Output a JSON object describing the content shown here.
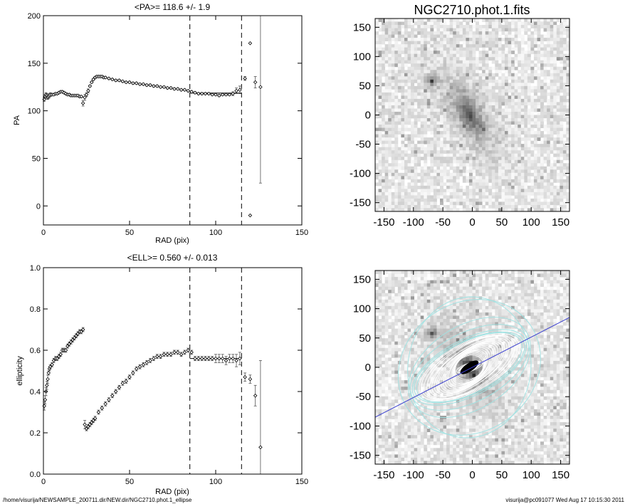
{
  "footer": {
    "path": "/home/visurija/NEWSAMPLE_200711.dir/NEW.dir/NGC2710.phot.1_ellipse",
    "stamp": "visurija@pc091077  Wed Aug 17 10:15:30 2011"
  },
  "chart_data": [
    {
      "type": "scatter",
      "title": "<PA>= 118.6 +/-   1.9",
      "xlabel": "RAD (pix)",
      "ylabel": "PA",
      "xlim": [
        0,
        150
      ],
      "ylim": [
        -20,
        200
      ],
      "xticks": [
        0,
        50,
        100,
        150
      ],
      "yticks": [
        0,
        50,
        100,
        150,
        200
      ],
      "vlines": [
        85,
        115
      ],
      "fit_line": {
        "x": [
          85,
          115
        ],
        "y": 118.6
      },
      "grid": false,
      "series": [
        {
          "x": [
            0.5,
            1,
            1.5,
            2,
            2.5,
            3,
            3.5,
            4,
            5,
            6,
            7,
            8,
            9,
            10,
            11,
            12,
            13,
            14,
            15,
            16,
            17,
            18,
            19,
            20,
            21,
            22,
            23,
            24,
            25,
            26,
            27,
            28,
            29,
            30,
            31,
            32,
            33,
            34,
            35,
            36,
            38,
            40,
            42,
            44,
            46,
            48,
            50,
            52,
            54,
            56,
            58,
            60,
            62,
            64,
            66,
            68,
            70,
            72,
            74,
            76,
            78,
            80,
            82,
            84,
            86,
            88,
            90,
            92,
            94,
            96,
            98,
            100,
            102,
            104,
            106,
            108,
            110,
            112,
            114,
            117,
            120,
            123,
            126
          ],
          "y": [
            112,
            115,
            117,
            116,
            114,
            115,
            116,
            117,
            117,
            117,
            118,
            118,
            119,
            120,
            120,
            119,
            118,
            117,
            117,
            116,
            116,
            116,
            116,
            116,
            115,
            115,
            108,
            114,
            117,
            121,
            126,
            130,
            133,
            135,
            136,
            136,
            136,
            136,
            135,
            135,
            134,
            133,
            132,
            132,
            131,
            130,
            130,
            129,
            129,
            128,
            128,
            127,
            127,
            126,
            126,
            125,
            125,
            124,
            124,
            123,
            123,
            122,
            122,
            121,
            120,
            119,
            118,
            118,
            118,
            118,
            117,
            117,
            116,
            117,
            117,
            117,
            118,
            121,
            122,
            134,
            171,
            130,
            125
          ],
          "err": [
            2,
            2,
            2,
            2,
            2,
            2,
            2,
            2,
            1,
            1,
            1,
            1,
            1,
            1,
            1,
            1,
            1,
            1,
            1,
            1,
            1,
            1,
            1,
            1,
            1,
            1,
            3,
            3,
            2,
            2,
            1,
            1,
            1,
            1,
            1,
            1,
            1,
            1,
            1,
            1,
            1,
            1,
            1,
            1,
            1,
            1,
            1,
            1,
            1,
            1,
            1,
            1,
            1,
            1,
            1,
            1,
            1,
            1,
            1,
            1,
            1,
            1,
            1,
            1,
            1,
            1,
            1,
            1,
            1,
            1,
            1,
            1,
            1,
            1,
            1,
            1,
            2,
            3,
            4,
            2,
            0,
            6,
            101
          ],
          "outliers": [
            {
              "x": 120,
              "y": -10
            }
          ]
        }
      ]
    },
    {
      "type": "scatter",
      "title": "<ELL>= 0.560 +/-  0.013",
      "xlabel": "RAD (pix)",
      "ylabel": "ellipticity",
      "xlim": [
        0,
        150
      ],
      "ylim": [
        0,
        1
      ],
      "xticks": [
        0,
        50,
        100,
        150
      ],
      "yticks": [
        0.0,
        0.2,
        0.4,
        0.6,
        0.8,
        1.0
      ],
      "vlines": [
        85,
        115
      ],
      "fit_line": {
        "x": [
          85,
          115
        ],
        "y": 0.56
      },
      "grid": false,
      "series": [
        {
          "x": [
            0.5,
            1,
            1.5,
            2,
            2.5,
            3,
            3.5,
            4,
            5,
            6,
            7,
            8,
            9,
            10,
            11,
            12,
            13,
            14,
            15,
            16,
            17,
            18,
            19,
            20,
            21,
            22,
            23,
            24,
            25,
            26,
            27,
            28,
            29,
            30,
            32,
            34,
            36,
            38,
            40,
            42,
            44,
            46,
            48,
            50,
            52,
            54,
            56,
            58,
            60,
            62,
            64,
            66,
            68,
            70,
            72,
            74,
            76,
            78,
            80,
            82,
            84,
            86,
            88,
            90,
            92,
            94,
            96,
            98,
            100,
            102,
            104,
            106,
            108,
            110,
            112,
            114,
            117,
            120,
            123,
            126
          ],
          "y": [
            0.33,
            0.36,
            0.4,
            0.43,
            0.46,
            0.49,
            0.51,
            0.52,
            0.53,
            0.55,
            0.56,
            0.56,
            0.57,
            0.58,
            0.6,
            0.6,
            0.6,
            0.62,
            0.63,
            0.64,
            0.65,
            0.66,
            0.67,
            0.68,
            0.69,
            0.69,
            0.7,
            0.24,
            0.22,
            0.23,
            0.24,
            0.25,
            0.26,
            0.27,
            0.3,
            0.32,
            0.34,
            0.36,
            0.38,
            0.4,
            0.42,
            0.44,
            0.45,
            0.47,
            0.49,
            0.51,
            0.52,
            0.53,
            0.54,
            0.55,
            0.56,
            0.57,
            0.57,
            0.58,
            0.58,
            0.58,
            0.59,
            0.59,
            0.58,
            0.59,
            0.6,
            0.59,
            0.56,
            0.56,
            0.56,
            0.56,
            0.56,
            0.56,
            0.56,
            0.56,
            0.56,
            0.55,
            0.56,
            0.56,
            0.55,
            0.56,
            0.47,
            0.46,
            0.38,
            0.13
          ],
          "err": [
            0.02,
            0.02,
            0.02,
            0.02,
            0.02,
            0.01,
            0.01,
            0.01,
            0.01,
            0.01,
            0.01,
            0.01,
            0.01,
            0.01,
            0.01,
            0.01,
            0.01,
            0.01,
            0.01,
            0.01,
            0.01,
            0.01,
            0.01,
            0.01,
            0.01,
            0.01,
            0.01,
            0.02,
            0.01,
            0.01,
            0.01,
            0.01,
            0.01,
            0.01,
            0.01,
            0.01,
            0.01,
            0.01,
            0.01,
            0.01,
            0.01,
            0.01,
            0.01,
            0.01,
            0.01,
            0.01,
            0.01,
            0.01,
            0.01,
            0.01,
            0.01,
            0.01,
            0.01,
            0.01,
            0.01,
            0.01,
            0.01,
            0.01,
            0.01,
            0.01,
            0.01,
            0.01,
            0.01,
            0.01,
            0.01,
            0.01,
            0.01,
            0.01,
            0.02,
            0.02,
            0.02,
            0.02,
            0.02,
            0.02,
            0.03,
            0.03,
            0.02,
            0.02,
            0.05,
            0.42
          ]
        }
      ]
    },
    {
      "type": "heatmap",
      "title": "NGC2710.phot.1.fits",
      "xlim": [
        -165,
        165
      ],
      "ylim": [
        -165,
        165
      ],
      "xticks": [
        -150,
        -100,
        -50,
        0,
        50,
        100,
        150
      ],
      "yticks": [
        -150,
        -100,
        -50,
        0,
        50,
        100,
        150
      ],
      "colormap": "grayscale-inverted",
      "galaxy": {
        "center": [
          -5,
          0
        ],
        "pa_deg": 118.6,
        "ellipticity": 0.56
      },
      "bright_source": {
        "center": [
          -68,
          58
        ]
      }
    },
    {
      "type": "heatmap",
      "title": "",
      "xlim": [
        -165,
        165
      ],
      "ylim": [
        -165,
        165
      ],
      "xticks": [
        -150,
        -100,
        -50,
        0,
        50,
        100,
        150
      ],
      "yticks": [
        -150,
        -100,
        -50,
        0,
        50,
        100,
        150
      ],
      "colormap": "grayscale-inverted",
      "overlay": {
        "ellipse_color": "#ffffff",
        "outer_ellipse_color": "#9fe3e3",
        "pa_line_color": "#3a3fd0",
        "pa_line": [
          [
            -165,
            -85
          ],
          [
            165,
            85
          ]
        ],
        "center": [
          -5,
          0
        ],
        "ellipticity": 0.56,
        "max_semimajor": 127
      }
    }
  ]
}
